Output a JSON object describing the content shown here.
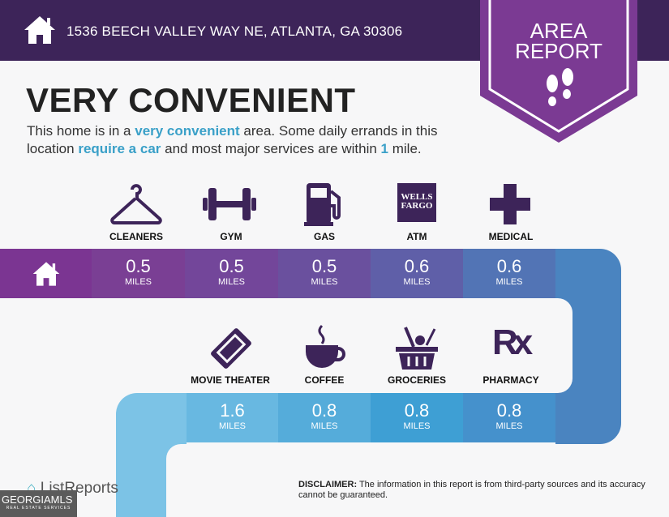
{
  "header": {
    "address": "1536 BEECH VALLEY WAY NE, ATLANTA, GA 30306",
    "icon": "house-icon"
  },
  "badge": {
    "line1": "AREA",
    "line2": "REPORT",
    "icon": "footprints-icon"
  },
  "title": "VERY CONVENIENT",
  "summary": {
    "p1": "This home is in a ",
    "h1": "very convenient",
    "p2": " area. Some daily errands in this location ",
    "h2": "require a car",
    "p3": " and most major services are within ",
    "h3": "1",
    "p4": " mile."
  },
  "row1": [
    {
      "label": "CLEANERS",
      "value": "0.5",
      "unit": "MILES",
      "icon": "hanger-icon"
    },
    {
      "label": "GYM",
      "value": "0.5",
      "unit": "MILES",
      "icon": "dumbbell-icon"
    },
    {
      "label": "GAS",
      "value": "0.5",
      "unit": "MILES",
      "icon": "gas-pump-icon"
    },
    {
      "label": "ATM",
      "value": "0.6",
      "unit": "MILES",
      "icon": "wells-fargo-icon",
      "icon_text1": "WELLS",
      "icon_text2": "FARGO"
    },
    {
      "label": "MEDICAL",
      "value": "0.6",
      "unit": "MILES",
      "icon": "medical-cross-icon"
    }
  ],
  "row2": [
    {
      "label": "MOVIE THEATER",
      "value": "1.6",
      "unit": "MILES",
      "icon": "ticket-icon"
    },
    {
      "label": "COFFEE",
      "value": "0.8",
      "unit": "MILES",
      "icon": "coffee-cup-icon"
    },
    {
      "label": "GROCERIES",
      "value": "0.8",
      "unit": "MILES",
      "icon": "grocery-basket-icon"
    },
    {
      "label": "PHARMACY",
      "value": "0.8",
      "unit": "MILES",
      "icon": "rx-icon",
      "icon_text": "Rx"
    }
  ],
  "colors": {
    "header": "#3d2459",
    "badge": "#7b3a93",
    "accent": "#3aa0c8",
    "icon": "#3d2459"
  },
  "disclaimer": {
    "bold": "DISCLAIMER:",
    "text": " The information in this report is from third-party sources and its accuracy cannot be guaranteed."
  },
  "footer": {
    "listreports": "ListReports",
    "gmls": "GEORGIAMLS",
    "gmls_sub": "REAL ESTATE SERVICES"
  }
}
